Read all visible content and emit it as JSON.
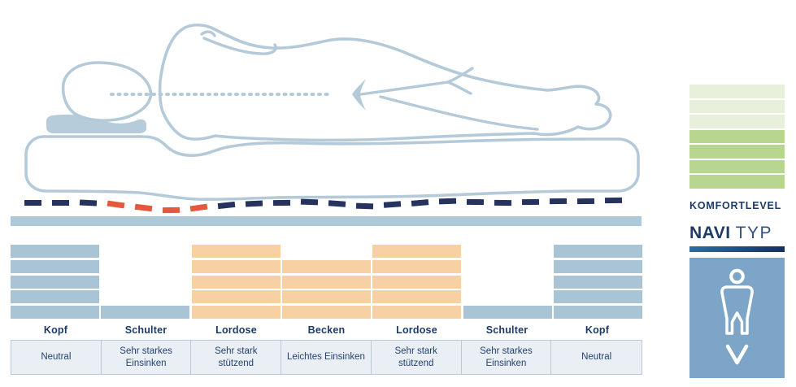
{
  "palette": {
    "navy": "#1e3a66",
    "cell_text": "#24416e",
    "outline": "#b5cad9",
    "pillow": "#b7ccda",
    "base_bar": "#adc8d7",
    "chart_blue": "#a9c4d5",
    "chart_orange": "#f7d0a4",
    "dash_navy": "#27335f",
    "dash_orange": "#e15a3d",
    "table_bg": "#e9eff4",
    "table_border": "#b9cbd9",
    "green_light": "#e6f0da",
    "green_dark": "#b8d68f",
    "box_blue": "#7da5c7",
    "grad_left": "#2e6da7",
    "grad_right": "#143057",
    "typ_color": "#34537b"
  },
  "zones": [
    {
      "label": "Kopf",
      "description": "Neutral",
      "bars": 5,
      "type": "blue"
    },
    {
      "label": "Schulter",
      "description": "Sehr starkes Einsinken",
      "bars": 1,
      "type": "blue"
    },
    {
      "label": "Lordose",
      "description": "Sehr stark stützend",
      "bars": 5,
      "type": "orange"
    },
    {
      "label": "Becken",
      "description": "Leichtes Einsinken",
      "bars": 4,
      "type": "orange"
    },
    {
      "label": "Lordose",
      "description": "Sehr stark stützend",
      "bars": 5,
      "type": "orange"
    },
    {
      "label": "Schulter",
      "description": "Sehr starkes Einsinken",
      "bars": 1,
      "type": "blue"
    },
    {
      "label": "Kopf",
      "description": "Neutral",
      "bars": 5,
      "type": "blue"
    }
  ],
  "illustration": {
    "figure": "person-lying-on-side-on-mattress",
    "pressure_dashes": [
      [
        30,
        246,
        0,
        0
      ],
      [
        64,
        246,
        0,
        0
      ],
      [
        98,
        246,
        3,
        0
      ],
      [
        132,
        248,
        8,
        1
      ],
      [
        166,
        252,
        7,
        1
      ],
      [
        200,
        255,
        -1,
        1
      ],
      [
        234,
        252,
        -8,
        1
      ],
      [
        268,
        249,
        -6,
        0
      ],
      [
        302,
        247,
        -3,
        0
      ],
      [
        336,
        246,
        -1,
        0
      ],
      [
        370,
        245,
        2,
        0
      ],
      [
        404,
        247,
        4,
        0
      ],
      [
        438,
        250,
        2,
        0
      ],
      [
        472,
        248,
        -4,
        0
      ],
      [
        506,
        246,
        -5,
        0
      ],
      [
        540,
        244,
        -2,
        0
      ],
      [
        574,
        245,
        1,
        0
      ],
      [
        608,
        246,
        1,
        0
      ],
      [
        642,
        245,
        -1,
        0
      ],
      [
        676,
        244,
        -1,
        0
      ],
      [
        710,
        244,
        -1,
        0
      ],
      [
        744,
        243,
        -1,
        0
      ]
    ]
  },
  "sidebar": {
    "komfortlevel_label": "KOMFORTLEVEL",
    "levels": [
      "light",
      "light",
      "light",
      "dark",
      "dark",
      "dark",
      "dark"
    ],
    "navi_word": "NAVI",
    "typ_word": "TYP",
    "type_icon": "male-figure-with-down-chevron"
  }
}
